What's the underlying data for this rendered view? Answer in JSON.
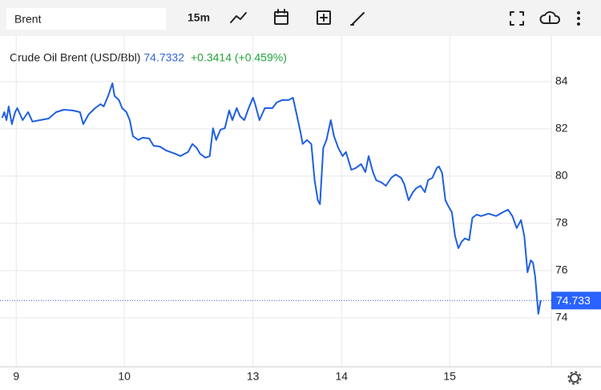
{
  "toolbar": {
    "symbol": "Brent",
    "interval": "15m"
  },
  "chart_data": {
    "type": "line",
    "title": "Crude Oil Brent (USD/Bbl)",
    "price": 74.7332,
    "change": "+0.3414 (+0.459%)",
    "last_price": 74.733,
    "color": "#1f5fe0",
    "grid": true,
    "xlim": [
      -0.15,
      4.95
    ],
    "ylim": [
      71.93,
      85.93
    ],
    "xticks": [
      {
        "value": 0,
        "label": "9"
      },
      {
        "value": 1,
        "label": "10"
      },
      {
        "value": 2.19,
        "label": "13"
      },
      {
        "value": 3.01,
        "label": "14"
      },
      {
        "value": 4.01,
        "label": "15"
      }
    ],
    "yticks": [
      74,
      76,
      78,
      80,
      82,
      84
    ],
    "x": [
      -0.13,
      -0.11,
      -0.09,
      -0.07,
      -0.04,
      -0.01,
      0.01,
      0.06,
      0.11,
      0.15,
      0.22,
      0.3,
      0.37,
      0.44,
      0.52,
      0.59,
      0.62,
      0.67,
      0.73,
      0.78,
      0.81,
      0.85,
      0.89,
      0.91,
      0.95,
      0.98,
      1.02,
      1.05,
      1.08,
      1.13,
      1.17,
      1.23,
      1.27,
      1.33,
      1.39,
      1.47,
      1.52,
      1.56,
      1.59,
      1.63,
      1.67,
      1.7,
      1.75,
      1.79,
      1.82,
      1.85,
      1.89,
      1.93,
      1.97,
      2.0,
      2.04,
      2.07,
      2.11,
      2.15,
      2.19,
      2.21,
      2.25,
      2.3,
      2.37,
      2.41,
      2.46,
      2.52,
      2.56,
      2.59,
      2.63,
      2.65,
      2.69,
      2.73,
      2.76,
      2.79,
      2.81,
      2.84,
      2.87,
      2.91,
      2.94,
      2.98,
      3.02,
      3.05,
      3.1,
      3.14,
      3.19,
      3.23,
      3.26,
      3.3,
      3.33,
      3.38,
      3.42,
      3.47,
      3.51,
      3.56,
      3.59,
      3.63,
      3.67,
      3.7,
      3.74,
      3.78,
      3.81,
      3.85,
      3.89,
      3.91,
      3.94,
      3.97,
      4.0,
      4.03,
      4.06,
      4.09,
      4.12,
      4.15,
      4.19,
      4.22,
      4.26,
      4.3,
      4.37,
      4.44,
      4.5,
      4.55,
      4.59,
      4.63,
      4.67,
      4.7,
      4.73,
      4.76,
      4.78,
      4.8,
      4.83,
      4.85,
      4.86
    ],
    "values": [
      82.47,
      82.71,
      82.37,
      82.95,
      82.2,
      82.71,
      82.88,
      82.37,
      82.71,
      82.31,
      82.37,
      82.44,
      82.71,
      82.81,
      82.78,
      82.71,
      82.2,
      82.61,
      82.88,
      83.05,
      82.95,
      83.39,
      83.93,
      83.39,
      83.22,
      82.88,
      82.71,
      82.37,
      81.69,
      81.53,
      81.63,
      81.59,
      81.29,
      81.25,
      81.08,
      80.95,
      80.85,
      80.95,
      81.02,
      81.36,
      81.19,
      80.95,
      80.78,
      80.85,
      82.03,
      81.53,
      81.97,
      82.03,
      82.78,
      82.37,
      82.88,
      82.54,
      82.37,
      82.88,
      83.32,
      83.05,
      82.37,
      82.88,
      82.88,
      83.12,
      83.22,
      83.22,
      83.32,
      82.71,
      81.86,
      81.36,
      81.53,
      81.36,
      79.83,
      78.98,
      78.81,
      81.19,
      81.53,
      82.37,
      81.69,
      81.19,
      80.85,
      81.02,
      80.27,
      80.34,
      80.51,
      80.17,
      80.85,
      80.17,
      79.83,
      79.73,
      79.59,
      79.93,
      80.07,
      79.93,
      79.66,
      78.98,
      79.32,
      79.49,
      79.59,
      79.32,
      79.83,
      79.93,
      80.34,
      80.41,
      80.14,
      78.98,
      78.71,
      78.47,
      77.46,
      76.95,
      77.22,
      77.36,
      77.29,
      78.24,
      78.37,
      78.31,
      78.41,
      78.31,
      78.47,
      78.58,
      78.31,
      77.8,
      78.14,
      77.46,
      75.93,
      76.44,
      76.34,
      75.76,
      74.17,
      74.71,
      74.73
    ]
  }
}
